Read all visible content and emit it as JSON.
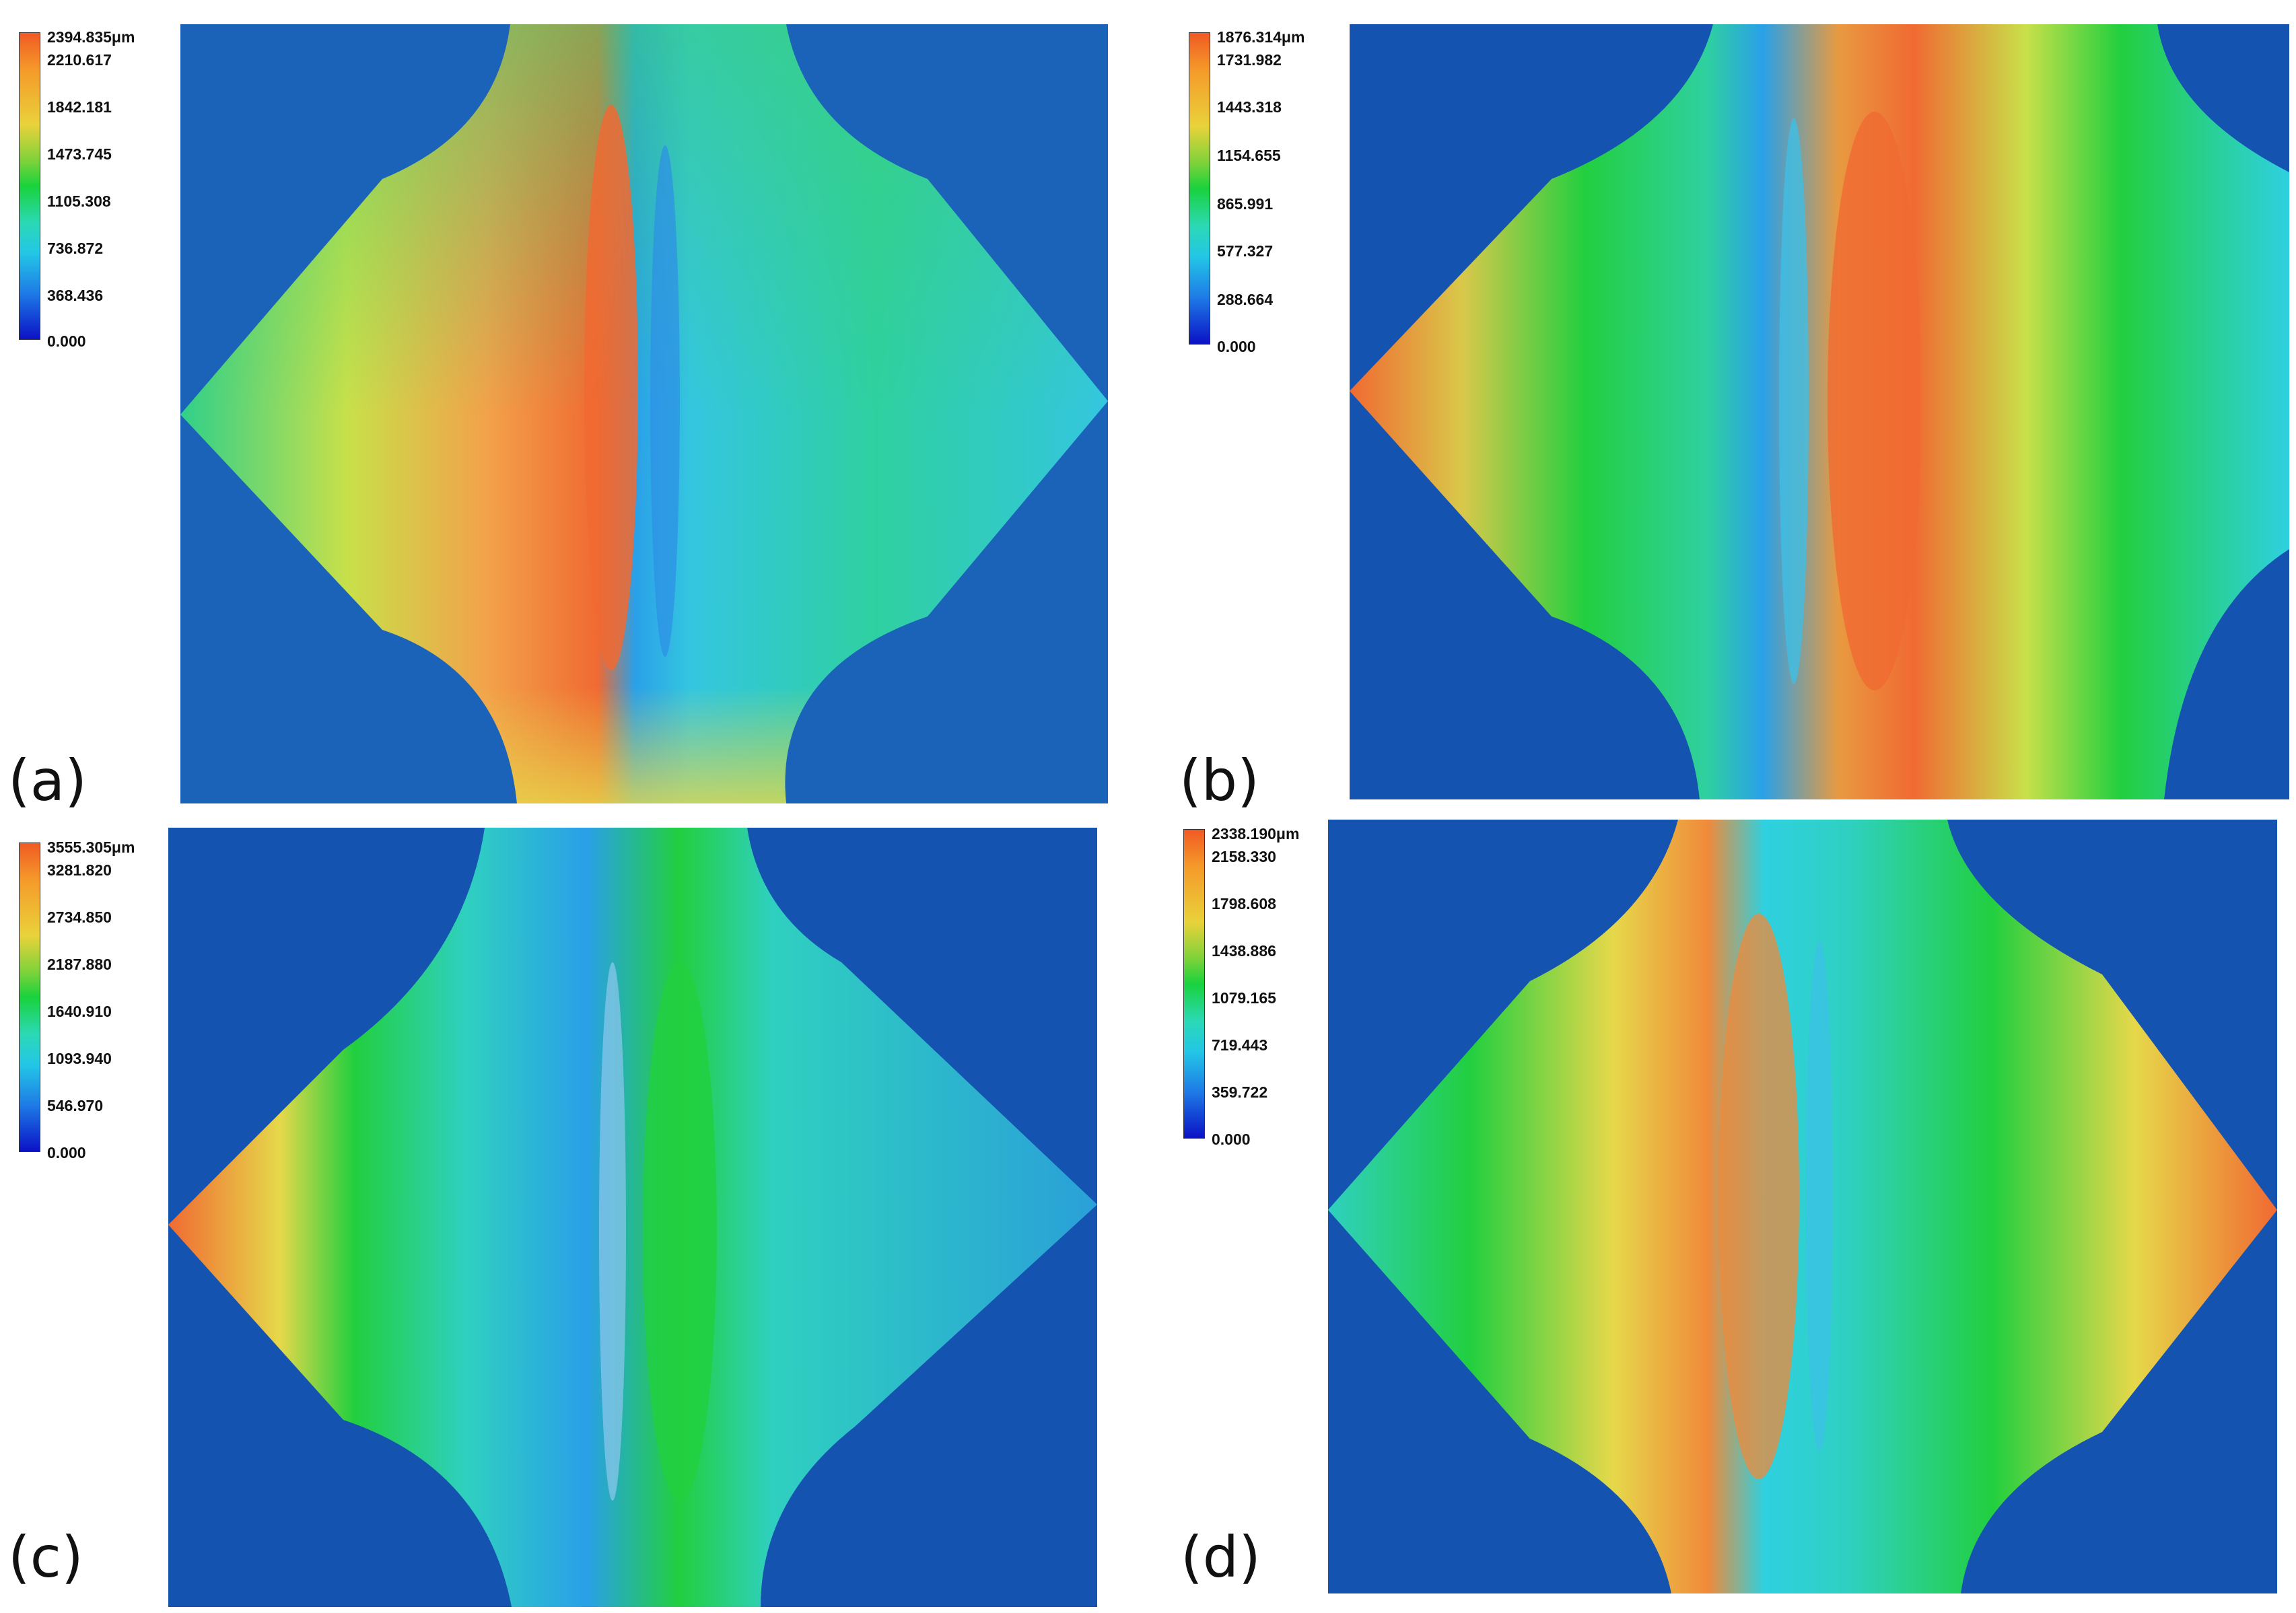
{
  "panels": [
    {
      "label": "(a)",
      "scale": {
        "max": "2394.835μm",
        "ticks": [
          "2210.617",
          "1842.181",
          "1473.745",
          "1105.308",
          "736.872",
          "368.436",
          "0.000"
        ]
      }
    },
    {
      "label": "(b)",
      "scale": {
        "max": "1876.314μm",
        "ticks": [
          "1731.982",
          "1443.318",
          "1154.655",
          "865.991",
          "577.327",
          "288.664",
          "0.000"
        ]
      }
    },
    {
      "label": "(c)",
      "scale": {
        "max": "3555.305μm",
        "ticks": [
          "3281.820",
          "2734.850",
          "2187.880",
          "1640.910",
          "1093.940",
          "546.970",
          "0.000"
        ]
      }
    },
    {
      "label": "(d)",
      "scale": {
        "max": "2338.190μm",
        "ticks": [
          "2158.330",
          "1798.608",
          "1438.886",
          "1079.165",
          "719.443",
          "359.722",
          "0.000"
        ]
      }
    }
  ],
  "colors": {
    "background_plate": "#0f4fa8",
    "low": "#1e6fd9",
    "cyan": "#2fd0e0",
    "green": "#22cf3f",
    "yellow": "#e6d84a",
    "high": "#f06a32"
  }
}
